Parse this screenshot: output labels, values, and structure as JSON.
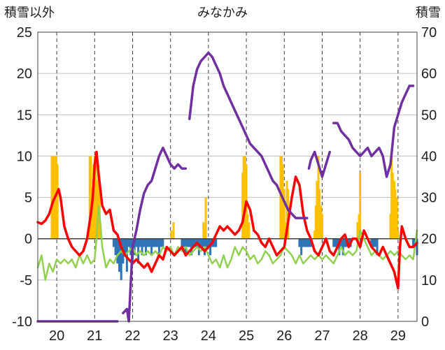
{
  "chart_data": {
    "type": "bar+line",
    "title": "みなかみ",
    "ylabel_left": "積雪以外",
    "ylabel_right": "積雪",
    "categories": [
      "20",
      "21",
      "22",
      "23",
      "24",
      "25",
      "26",
      "27",
      "28",
      "29"
    ],
    "x_range": [
      19.5,
      29.5
    ],
    "ylim_left": [
      -10,
      25
    ],
    "yticks_left": [
      -10,
      -5,
      0,
      5,
      10,
      15,
      20,
      25
    ],
    "ylim_right": [
      0,
      70
    ],
    "yticks_right": [
      0,
      10,
      20,
      30,
      40,
      50,
      60,
      70
    ],
    "grid": {
      "horizontal": true,
      "vertical_dashed": true
    },
    "legend": "none",
    "colors": {
      "precipitation": "#FFC000",
      "sunshine": "#2E75B6",
      "temperature": "#FF0000",
      "humidity": "#92D050",
      "snow_depth": "#7030A0"
    },
    "series": [
      {
        "key": "precipitation",
        "type": "bar",
        "axis": "left",
        "x": [
          19.87,
          19.9,
          19.93,
          19.96,
          19.99,
          20.02,
          20.87,
          20.9,
          20.93,
          20.97,
          21.0,
          21.03,
          21.07,
          21.1,
          21.13,
          23.02,
          23.08,
          23.87,
          23.9,
          23.93,
          24.9,
          24.93,
          24.97,
          25.0,
          25.03,
          25.07,
          25.9,
          25.93,
          25.96,
          26.0,
          26.03,
          26.07,
          26.1,
          26.8,
          26.83,
          26.86,
          26.9,
          26.93,
          26.97,
          27.0,
          27.93,
          27.97,
          28.0,
          28.8,
          28.83,
          28.86,
          28.9,
          28.93,
          28.97,
          29.0
        ],
        "values": [
          10,
          10,
          10,
          10,
          10,
          9,
          10,
          10,
          4,
          9,
          10,
          10,
          7,
          9,
          6,
          1,
          2,
          2,
          1,
          5,
          8,
          10,
          10,
          9,
          3,
          2,
          10,
          10,
          9,
          6,
          2,
          7,
          6,
          1,
          4,
          7,
          10,
          6,
          4,
          3,
          2,
          3,
          8,
          3,
          10,
          8,
          7,
          6,
          5,
          1
        ]
      },
      {
        "key": "sunshine",
        "type": "bar",
        "axis": "left",
        "x": [
          21.5,
          21.55,
          21.6,
          21.65,
          21.7,
          21.75,
          21.8,
          21.85,
          21.9,
          21.95,
          22.0,
          22.05,
          22.1,
          22.15,
          22.2,
          22.25,
          22.3,
          22.35,
          22.4,
          22.45,
          22.5,
          22.55,
          22.6,
          22.65,
          22.7,
          22.75,
          22.8,
          23.3,
          23.35,
          23.4,
          23.45,
          23.5,
          23.55,
          23.6,
          23.65,
          23.7,
          23.75,
          23.8,
          23.85,
          23.9,
          23.95,
          24.0,
          24.05,
          24.1,
          24.15,
          24.2,
          26.4,
          26.45,
          26.5,
          26.55,
          26.6,
          26.65,
          26.7,
          27.3,
          27.35,
          27.4,
          27.45,
          27.5,
          27.55,
          27.6,
          27.65,
          27.7,
          27.75,
          28.3,
          28.35,
          28.4,
          28.45,
          29.4,
          29.45,
          29.5
        ],
        "values": [
          -1,
          -2,
          -3,
          -4,
          -5,
          -3,
          -2,
          -4,
          -1,
          -2,
          -3,
          -2,
          -1,
          -3,
          -1,
          -2,
          -1,
          -2,
          -1,
          -1,
          -2,
          -1,
          -1,
          -1,
          -2,
          -1,
          -1,
          -1,
          -1,
          -2,
          -1,
          -1,
          -2,
          -1,
          -1,
          -1,
          -2,
          -1,
          -1,
          -2,
          -1,
          -1,
          -2,
          -1,
          -1,
          -1,
          -1,
          -2,
          -1,
          -1,
          -1,
          -1,
          -1,
          -1,
          -1,
          -1,
          -2,
          -1,
          -2,
          -1,
          -1,
          -1,
          -1,
          -1,
          -1,
          -1,
          -2,
          -1,
          -1,
          -2
        ]
      },
      {
        "key": "humidity",
        "type": "line",
        "axis": "left",
        "x": [
          19.5,
          19.6,
          19.7,
          19.8,
          19.9,
          20.0,
          20.1,
          20.2,
          20.3,
          20.4,
          20.5,
          20.6,
          20.7,
          20.8,
          20.9,
          21.0,
          21.05,
          21.1,
          21.15,
          21.2,
          21.3,
          21.4,
          21.5,
          21.6,
          21.7,
          21.8,
          21.9,
          22.0,
          22.1,
          22.2,
          22.3,
          22.4,
          22.5,
          22.6,
          22.7,
          22.8,
          22.9,
          23.0,
          23.1,
          23.2,
          23.3,
          23.4,
          23.5,
          23.6,
          23.7,
          23.8,
          23.9,
          24.0,
          24.1,
          24.2,
          24.3,
          24.4,
          24.5,
          24.6,
          24.7,
          24.8,
          24.9,
          25.0,
          25.1,
          25.2,
          25.3,
          25.4,
          25.5,
          25.6,
          25.7,
          25.8,
          25.9,
          26.0,
          26.1,
          26.2,
          26.3,
          26.4,
          26.5,
          26.6,
          26.7,
          26.8,
          26.9,
          27.0,
          27.1,
          27.2,
          27.3,
          27.4,
          27.5,
          27.6,
          27.7,
          27.8,
          27.9,
          28.0,
          28.1,
          28.2,
          28.3,
          28.4,
          28.5,
          28.6,
          28.7,
          28.8,
          28.9,
          29.0,
          29.1,
          29.2,
          29.3,
          29.4,
          29.5
        ],
        "values": [
          -3.5,
          -2,
          -5,
          -3,
          -4,
          -2.5,
          -3,
          -2.5,
          -3,
          -2.5,
          -3.5,
          -2,
          -3,
          -2,
          -3,
          -2.5,
          0,
          4,
          2,
          -1,
          -3.5,
          -2.5,
          -3,
          -2,
          -1.5,
          -2,
          -1.5,
          -1,
          -2,
          -1.5,
          -2,
          -1.5,
          -2,
          -1.5,
          -2,
          -1,
          -1.5,
          -1,
          -2,
          -1,
          -1.5,
          -1,
          -2,
          -1.5,
          -1,
          -1.5,
          -1,
          -2,
          -3,
          -2.5,
          -3.5,
          -2,
          -3.5,
          -2.5,
          -1,
          -2,
          -1,
          -1.5,
          -2.5,
          -2,
          -3,
          -2.5,
          -1.5,
          -2,
          -3,
          -2.5,
          -2,
          -1,
          -1.5,
          -2,
          -3,
          -2,
          -3,
          -2.5,
          -2,
          -2.5,
          -2,
          -2.5,
          -2,
          -2.5,
          -3,
          -2,
          -1,
          -2,
          -1.5,
          -2,
          -1.5,
          1,
          0,
          -1,
          -2,
          -1.5,
          -2,
          -2.5,
          -2,
          -1.5,
          -2,
          -1.5,
          -2,
          -2.5,
          -2,
          -2.5,
          1
        ]
      },
      {
        "key": "temperature",
        "type": "line",
        "axis": "left",
        "x": [
          19.5,
          19.6,
          19.7,
          19.8,
          19.9,
          20.0,
          20.05,
          20.1,
          20.2,
          20.3,
          20.4,
          20.5,
          20.6,
          20.7,
          20.8,
          20.9,
          20.95,
          21.0,
          21.05,
          21.1,
          21.2,
          21.3,
          21.4,
          21.5,
          21.6,
          21.7,
          21.8,
          21.9,
          22.0,
          22.1,
          22.2,
          22.3,
          22.4,
          22.5,
          22.6,
          22.7,
          22.8,
          22.9,
          23.0,
          23.1,
          23.2,
          23.3,
          23.4,
          23.5,
          23.6,
          23.7,
          23.8,
          23.9,
          24.0,
          24.1,
          24.2,
          24.3,
          24.4,
          24.5,
          24.6,
          24.7,
          24.8,
          24.9,
          25.0,
          25.1,
          25.2,
          25.3,
          25.4,
          25.5,
          25.6,
          25.7,
          25.8,
          25.9,
          26.0,
          26.1,
          26.2,
          26.3,
          26.4,
          26.5,
          26.6,
          26.7,
          26.8,
          26.9,
          27.0,
          27.1,
          27.2,
          27.3,
          27.4,
          27.5,
          27.6,
          27.7,
          27.8,
          27.9,
          28.0,
          28.1,
          28.2,
          28.3,
          28.4,
          28.5,
          28.6,
          28.7,
          28.8,
          28.9,
          29.0,
          29.05,
          29.1,
          29.2,
          29.3,
          29.4,
          29.5
        ],
        "values": [
          2,
          1.8,
          2.2,
          3,
          4.5,
          5.5,
          6,
          5,
          1.5,
          0,
          -1,
          -1.5,
          -2,
          -1.5,
          0,
          3,
          5,
          9,
          10.5,
          8,
          4,
          3,
          3.5,
          1,
          0.5,
          -1,
          -2,
          -2.5,
          -3,
          -2.5,
          -3,
          -3.5,
          -3,
          -4,
          -3,
          -2,
          -2.5,
          -1,
          -1.5,
          -2,
          -1.5,
          -1,
          -2,
          -1.5,
          -1,
          -0.5,
          -1,
          -1.5,
          -1,
          -0.5,
          0.5,
          1.5,
          1,
          1.5,
          1,
          0.5,
          1,
          2,
          4.5,
          3.5,
          1,
          0.5,
          -0.5,
          -1,
          0,
          -1,
          -2,
          -1.5,
          -1,
          2,
          5,
          7.5,
          6.5,
          3,
          1,
          0,
          -1.5,
          -2,
          -1,
          0,
          -1.5,
          -2,
          -1,
          0,
          0.5,
          -1,
          0,
          0,
          -1,
          1,
          0,
          -1,
          -1.5,
          -2,
          -1,
          -2,
          -3,
          -4,
          -6,
          -1,
          1.5,
          0,
          -1,
          -1,
          -0.5
        ]
      },
      {
        "key": "snow_depth",
        "type": "line",
        "axis": "right",
        "x": [
          19.5,
          19.7,
          19.9,
          20.1,
          20.3,
          20.5,
          20.7,
          20.9,
          21.1,
          21.3,
          21.5,
          21.6,
          null,
          21.75,
          21.85,
          21.9,
          22.0,
          22.1,
          22.2,
          22.3,
          22.4,
          22.5,
          22.6,
          22.7,
          22.8,
          22.9,
          23.0,
          23.1,
          23.2,
          23.3,
          23.4,
          null,
          23.5,
          23.6,
          23.7,
          23.8,
          23.9,
          24.0,
          24.1,
          24.2,
          24.3,
          24.4,
          24.5,
          24.6,
          24.7,
          24.8,
          24.9,
          25.0,
          25.1,
          25.2,
          25.3,
          25.4,
          25.5,
          25.6,
          25.7,
          25.8,
          25.9,
          26.0,
          26.1,
          26.2,
          26.3,
          26.4,
          26.5,
          26.6,
          null,
          26.65,
          26.7,
          26.8,
          26.9,
          27.0,
          27.1,
          27.2,
          null,
          27.3,
          27.4,
          27.5,
          27.6,
          27.7,
          27.8,
          27.9,
          28.0,
          28.1,
          28.2,
          28.3,
          28.4,
          28.5,
          28.6,
          28.7,
          28.8,
          28.9,
          29.0,
          29.1,
          29.2,
          29.3,
          29.4
        ],
        "values": [
          0,
          0,
          0,
          0,
          0,
          0,
          0,
          0,
          0,
          0,
          0,
          0,
          null,
          2,
          3,
          0,
          18,
          22,
          27,
          31,
          33,
          34,
          37,
          40,
          42,
          40,
          38,
          37,
          38,
          37,
          37,
          null,
          49,
          57,
          61,
          63,
          64,
          65,
          64,
          62,
          60,
          57,
          55,
          53,
          51,
          49,
          47,
          45,
          43,
          42,
          41,
          40,
          38,
          36,
          34,
          33,
          31,
          29,
          27,
          26,
          25,
          25,
          25,
          25,
          null,
          37,
          39,
          41,
          38,
          35,
          38,
          41,
          null,
          48,
          48,
          46,
          45,
          44,
          42,
          41,
          40,
          41,
          42,
          40,
          41,
          42,
          40,
          35,
          38,
          47,
          50,
          53,
          55,
          57,
          57
        ],
        "segments": [
          {
            "x": [
              19.5,
              21.6
            ],
            "values": [
              0,
              0
            ]
          }
        ]
      }
    ]
  }
}
